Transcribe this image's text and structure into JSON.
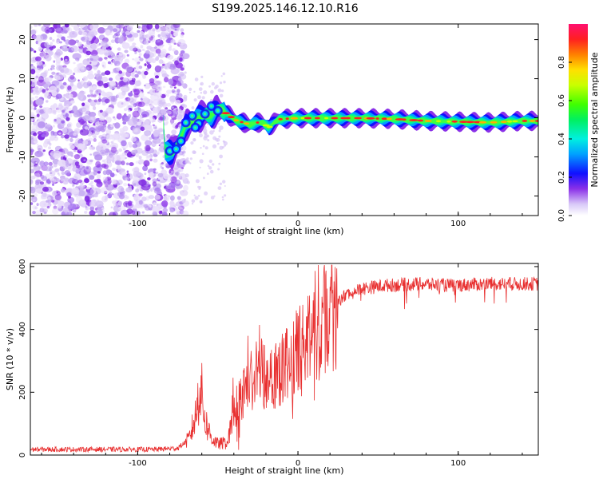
{
  "title": "S199.2025.146.12.10.R16",
  "chart_data": [
    {
      "type": "heatmap",
      "name": "spectrogram",
      "xlabel": "Height of straight line (km)",
      "ylabel": "Frequency (Hz)",
      "xlim": [
        -167,
        150
      ],
      "ylim": [
        -25,
        24
      ],
      "xticks": [
        -100,
        0,
        100
      ],
      "yticks": [
        -20,
        -10,
        0,
        10,
        20
      ],
      "ridge": [
        [
          -83,
          -8.5
        ],
        [
          -78,
          -9
        ],
        [
          -74,
          -6
        ],
        [
          -70,
          -2
        ],
        [
          -66,
          -1
        ],
        [
          -62,
          0
        ],
        [
          -58,
          1
        ],
        [
          -54,
          0.5
        ],
        [
          -50,
          2.2
        ],
        [
          -46,
          1.5
        ],
        [
          -42,
          0.3
        ],
        [
          -38,
          -0.8
        ],
        [
          -34,
          -1.2
        ],
        [
          -30,
          -1.8
        ],
        [
          -26,
          -1.2
        ],
        [
          -22,
          -1.3
        ],
        [
          -18,
          -2.5
        ],
        [
          -15,
          -1.2
        ],
        [
          -12,
          -0.4
        ],
        [
          -6,
          -0.2
        ],
        [
          0,
          -0.1
        ],
        [
          20,
          -0.1
        ],
        [
          40,
          -0.1
        ],
        [
          60,
          -0.3
        ],
        [
          80,
          -0.8
        ],
        [
          100,
          -1
        ],
        [
          120,
          -1.2
        ],
        [
          140,
          -0.8
        ],
        [
          150,
          -0.8
        ]
      ],
      "noise_region": [
        -167,
        -70
      ]
    },
    {
      "type": "colorbar",
      "label": "Normalized spectral amplitude",
      "range": [
        0,
        1
      ],
      "ticks": [
        0.0,
        0.2,
        0.4,
        0.6,
        0.8
      ],
      "tick_labels": [
        "0.0",
        "0.2",
        "0.4",
        "0.6",
        "0.8"
      ]
    },
    {
      "type": "line",
      "name": "snr",
      "xlabel": "Height of straight line (km)",
      "ylabel": "SNR (10 * v/v)",
      "xlim": [
        -167,
        150
      ],
      "ylim": [
        0,
        610
      ],
      "xticks": [
        -100,
        0,
        100
      ],
      "yticks": [
        0,
        200,
        400,
        600
      ],
      "color": "#e83030",
      "envelope": [
        [
          -167,
          18
        ],
        [
          -130,
          18
        ],
        [
          -90,
          18
        ],
        [
          -75,
          22
        ],
        [
          -68,
          50
        ],
        [
          -64,
          120
        ],
        [
          -61,
          230
        ],
        [
          -58,
          110
        ],
        [
          -54,
          55
        ],
        [
          -50,
          35
        ],
        [
          -44,
          40
        ],
        [
          -40,
          130
        ],
        [
          -36,
          180
        ],
        [
          -30,
          230
        ],
        [
          -24,
          270
        ],
        [
          -18,
          250
        ],
        [
          -12,
          280
        ],
        [
          -8,
          280
        ],
        [
          -4,
          310
        ],
        [
          0,
          320
        ],
        [
          6,
          370
        ],
        [
          12,
          420
        ],
        [
          18,
          450
        ],
        [
          24,
          480
        ],
        [
          30,
          510
        ],
        [
          40,
          530
        ],
        [
          55,
          540
        ],
        [
          75,
          545
        ],
        [
          95,
          540
        ],
        [
          120,
          545
        ],
        [
          150,
          545
        ]
      ]
    }
  ]
}
